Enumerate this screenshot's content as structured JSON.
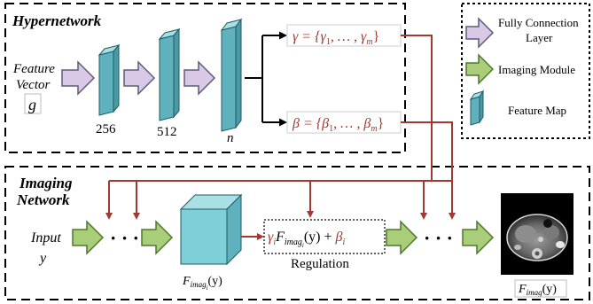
{
  "hypernetwork": {
    "title": "Hypernetwork",
    "input_label_line1": "Feature",
    "input_label_line2": "Vector",
    "input_symbol": "g",
    "layers": [
      "256",
      "512",
      "n"
    ],
    "gamma_lhs": "γ = {γ",
    "gamma_sub1": "1",
    "gamma_mid": ", … , γ",
    "gamma_subm": "m",
    "gamma_end": "}",
    "beta_lhs": "β = {β",
    "beta_sub1": "1",
    "beta_mid": ", … , β",
    "beta_subm": "m",
    "beta_end": "}"
  },
  "legend": {
    "items": [
      {
        "label_line1": "Fully Connection",
        "label_line2": "Layer"
      },
      {
        "label_line1": "Imaging Module"
      },
      {
        "label_line1": "Feature Map"
      }
    ]
  },
  "imaging": {
    "title_line1": "Imaging",
    "title_line2": "Network",
    "input_label_line1": "Input",
    "input_label_line2": "y",
    "dots": "· · ·",
    "cube_label_main": "F",
    "cube_label_sub": "imag",
    "cube_label_subsub": "i",
    "cube_label_arg": "(y)",
    "regulation_gamma": "γ",
    "regulation_gamma_sub": "i",
    "regulation_F": "F",
    "regulation_F_sub": "imag",
    "regulation_F_subsub": "i",
    "regulation_arg": "(y) + ",
    "regulation_beta": "β",
    "regulation_beta_sub": "i",
    "regulation_label": "Regulation",
    "output_label_main": "F",
    "output_label_sub": "imag",
    "output_label_arg": "(y)"
  },
  "colors": {
    "fc_arrow_fill": "#d9c8e6",
    "fc_arrow_stroke": "#5b5b7a",
    "img_arrow_fill": "#a9cd79",
    "img_arrow_stroke": "#4e7a2a",
    "feature_map_front": "#7fcfd8",
    "feature_map_side": "#5fb2bd",
    "feature_map_top": "#a9e0e6",
    "accent_red": "#a0392f"
  }
}
